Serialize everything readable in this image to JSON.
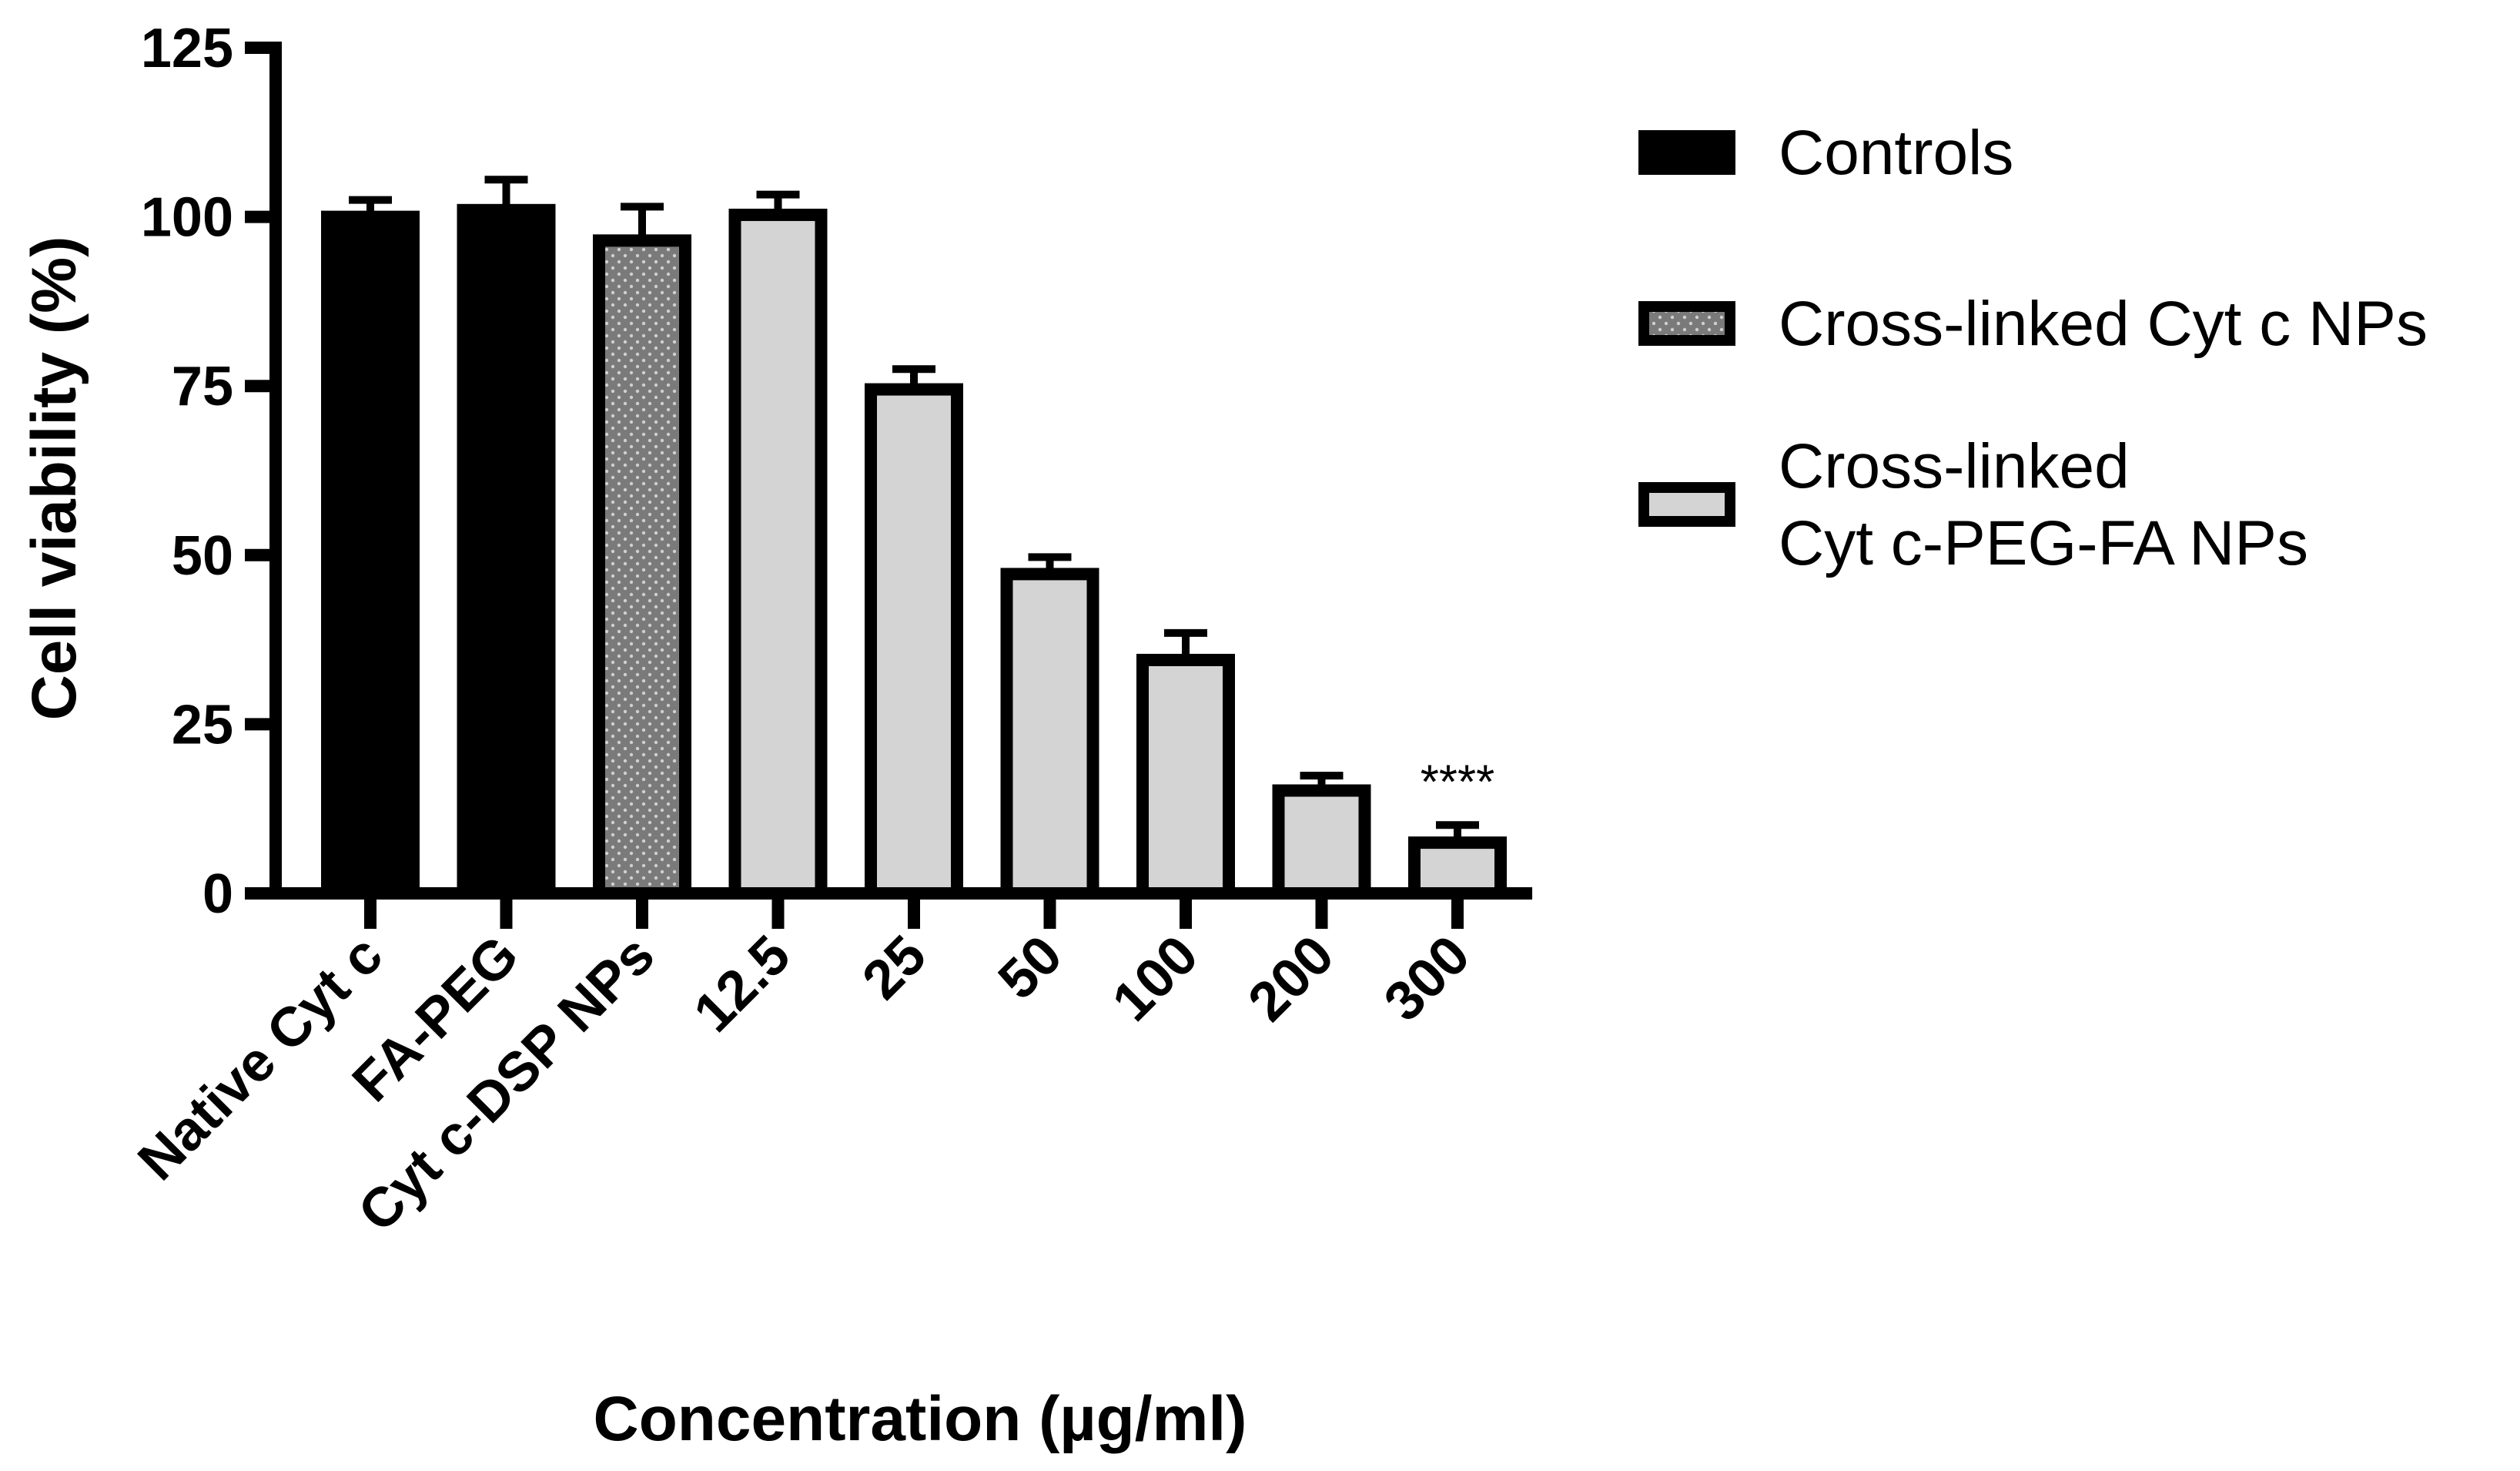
{
  "chart_data": {
    "type": "bar",
    "title": "",
    "xlabel": "Concentration  (µg/ml)",
    "ylabel": "Cell viability (%)",
    "ylim": [
      0,
      125
    ],
    "yticks": [
      0,
      25,
      50,
      75,
      100,
      125
    ],
    "categories": [
      "Native Cyt c",
      "FA-PEG",
      "Cyt c-DSP NPs",
      "12.5",
      "25",
      "50",
      "100",
      "200",
      "300"
    ],
    "values": [
      100,
      101,
      96.5,
      100.3,
      74.5,
      47.2,
      34.5,
      15.2,
      7.5
    ],
    "errors": [
      2.5,
      4.5,
      5,
      3,
      3,
      2.5,
      4,
      2.2,
      2.6
    ],
    "groups": [
      "controls",
      "controls",
      "cyt_np",
      "peg_fa_np",
      "peg_fa_np",
      "peg_fa_np",
      "peg_fa_np",
      "peg_fa_np",
      "peg_fa_np"
    ],
    "annotations": [
      {
        "category": "300",
        "text": "****"
      }
    ],
    "series": [
      {
        "id": "controls",
        "name": "Controls",
        "fill": "#000000",
        "pattern": "solid"
      },
      {
        "id": "cyt_np",
        "name": "Cross-linked Cyt c NPs",
        "fill": "#7a7a7a",
        "pattern": "dots"
      },
      {
        "id": "peg_fa_np",
        "name": "Cross-linked\nCyt c-PEG-FA NPs",
        "fill": "#d4d4d4",
        "pattern": "solid"
      }
    ],
    "legend_position": "right"
  }
}
